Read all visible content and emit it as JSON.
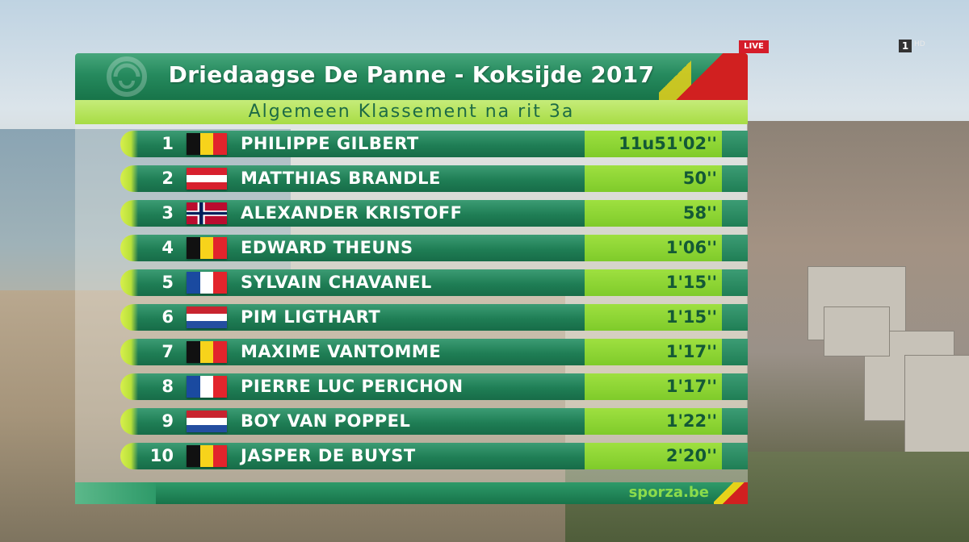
{
  "overlay": {
    "live_label": "LIVE",
    "channel": "1",
    "hd": "HD"
  },
  "header": {
    "title": "Driedaagse De Panne - Koksijde 2017",
    "subtitle": "Algemeen  Klassement  na  rit  3a"
  },
  "standings": [
    {
      "rank": "1",
      "flag": "belgium",
      "name": "PHILIPPE GILBERT",
      "time": "11u51'02''"
    },
    {
      "rank": "2",
      "flag": "austria",
      "name": "MATTHIAS BRANDLE",
      "time": "50''"
    },
    {
      "rank": "3",
      "flag": "norway",
      "name": "ALEXANDER KRISTOFF",
      "time": "58''"
    },
    {
      "rank": "4",
      "flag": "belgium",
      "name": "EDWARD THEUNS",
      "time": "1'06''"
    },
    {
      "rank": "5",
      "flag": "france",
      "name": "SYLVAIN CHAVANEL",
      "time": "1'15''"
    },
    {
      "rank": "6",
      "flag": "netherlands",
      "name": "PIM LIGTHART",
      "time": "1'15''"
    },
    {
      "rank": "7",
      "flag": "belgium",
      "name": "MAXIME VANTOMME",
      "time": "1'17''"
    },
    {
      "rank": "8",
      "flag": "france",
      "name": "PIERRE LUC PERICHON",
      "time": "1'17''"
    },
    {
      "rank": "9",
      "flag": "netherlands",
      "name": "BOY VAN POPPEL",
      "time": "1'22''"
    },
    {
      "rank": "10",
      "flag": "belgium",
      "name": "JASPER DE BUYST",
      "time": "2'20''"
    }
  ],
  "footer": {
    "site": "sporza.be"
  },
  "colors": {
    "header_green": "#268a5e",
    "subheader_lime": "#a7dc44",
    "time_green": "#7fcb2a",
    "accent_red": "#d12020",
    "accent_yellow": "#e6d21a"
  }
}
